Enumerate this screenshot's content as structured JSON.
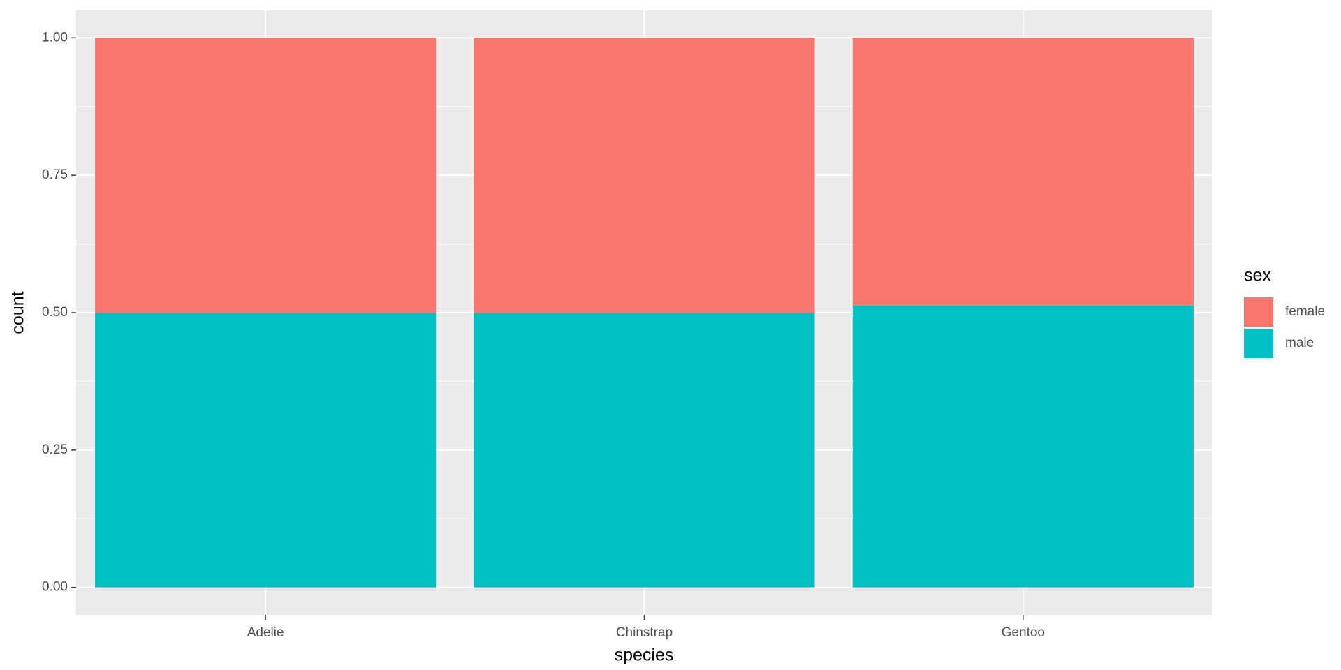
{
  "chart_data": {
    "type": "bar",
    "stacked": true,
    "x_label": "species",
    "y_label": "count",
    "categories": [
      "Adelie",
      "Chinstrap",
      "Gentoo"
    ],
    "series": [
      {
        "name": "female",
        "color": "#F8766D",
        "values": [
          0.5,
          0.5,
          0.487
        ]
      },
      {
        "name": "male",
        "color": "#00BFC4",
        "values": [
          0.5,
          0.5,
          0.513
        ]
      }
    ],
    "ylim": [
      -0.05,
      1.05
    ],
    "yticks": [
      {
        "value": 0,
        "label": "0.00"
      },
      {
        "value": 0.25,
        "label": "0.25"
      },
      {
        "value": 0.5,
        "label": "0.50"
      },
      {
        "value": 0.75,
        "label": "0.75"
      },
      {
        "value": 1,
        "label": "1.00"
      }
    ],
    "grid": true,
    "legend_title": "sex",
    "legend_position": "right"
  }
}
